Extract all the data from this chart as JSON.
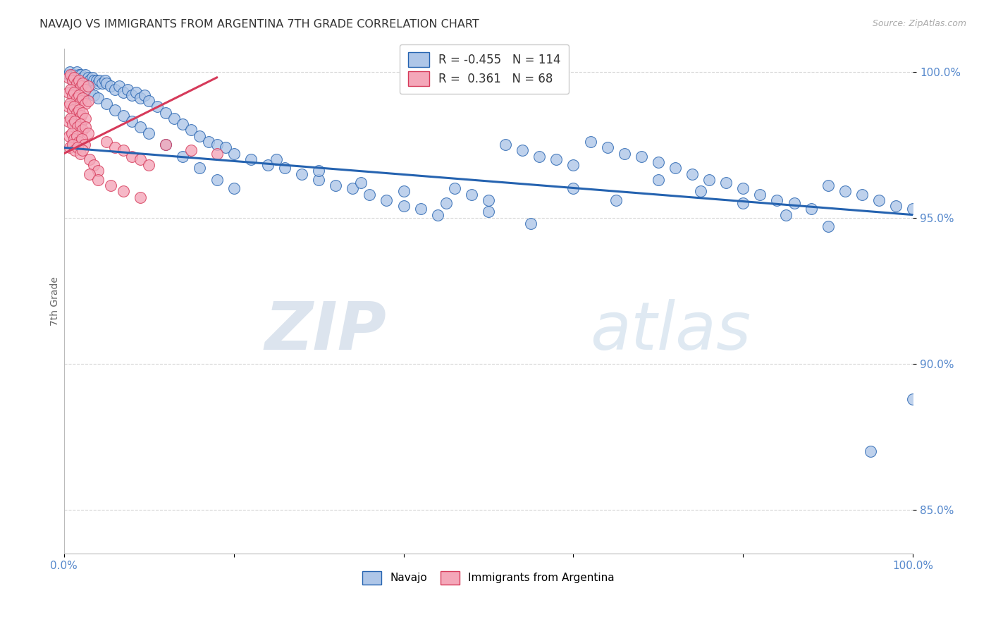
{
  "title": "NAVAJO VS IMMIGRANTS FROM ARGENTINA 7TH GRADE CORRELATION CHART",
  "source_text": "Source: ZipAtlas.com",
  "ylabel": "7th Grade",
  "x_min": 0.0,
  "x_max": 1.0,
  "y_min": 0.835,
  "y_max": 1.008,
  "y_ticks": [
    0.85,
    0.9,
    0.95,
    1.0
  ],
  "y_tick_labels": [
    "85.0%",
    "90.0%",
    "95.0%",
    "100.0%"
  ],
  "navajo_R": -0.455,
  "navajo_N": 114,
  "argentina_R": 0.361,
  "argentina_N": 68,
  "navajo_color": "#aec6e8",
  "argentina_color": "#f4a7b9",
  "navajo_line_color": "#2563b0",
  "argentina_line_color": "#d63a5a",
  "watermark_zip": "ZIP",
  "watermark_atlas": "atlas",
  "background_color": "#ffffff",
  "grid_color": "#cccccc",
  "title_color": "#333333",
  "axis_label_color": "#666666",
  "tick_label_color": "#5588cc",
  "nav_line_x0": 0.0,
  "nav_line_y0": 0.974,
  "nav_line_x1": 1.0,
  "nav_line_y1": 0.951,
  "arg_line_x0": 0.0,
  "arg_line_y0": 0.972,
  "arg_line_x1": 0.18,
  "arg_line_y1": 0.998,
  "navajo_x": [
    0.005,
    0.007,
    0.01,
    0.012,
    0.015,
    0.018,
    0.02,
    0.022,
    0.025,
    0.028,
    0.03,
    0.033,
    0.035,
    0.038,
    0.04,
    0.042,
    0.045,
    0.048,
    0.05,
    0.055,
    0.06,
    0.065,
    0.07,
    0.075,
    0.08,
    0.085,
    0.09,
    0.095,
    0.1,
    0.11,
    0.12,
    0.13,
    0.14,
    0.15,
    0.16,
    0.17,
    0.18,
    0.19,
    0.2,
    0.22,
    0.24,
    0.26,
    0.28,
    0.3,
    0.32,
    0.34,
    0.36,
    0.38,
    0.4,
    0.42,
    0.44,
    0.46,
    0.48,
    0.5,
    0.52,
    0.54,
    0.56,
    0.58,
    0.6,
    0.62,
    0.64,
    0.66,
    0.68,
    0.7,
    0.72,
    0.74,
    0.76,
    0.78,
    0.8,
    0.82,
    0.84,
    0.86,
    0.88,
    0.9,
    0.92,
    0.94,
    0.96,
    0.98,
    1.0,
    0.01,
    0.015,
    0.02,
    0.025,
    0.03,
    0.035,
    0.04,
    0.05,
    0.06,
    0.07,
    0.08,
    0.09,
    0.1,
    0.12,
    0.14,
    0.16,
    0.18,
    0.2,
    0.25,
    0.3,
    0.35,
    0.4,
    0.45,
    0.5,
    0.55,
    0.6,
    0.65,
    0.7,
    0.75,
    0.8,
    0.85,
    0.9,
    0.95,
    1.0
  ],
  "navajo_y": [
    0.999,
    1.0,
    0.999,
    0.999,
    1.0,
    0.999,
    0.999,
    0.998,
    0.999,
    0.998,
    0.997,
    0.998,
    0.997,
    0.997,
    0.996,
    0.997,
    0.996,
    0.997,
    0.996,
    0.995,
    0.994,
    0.995,
    0.993,
    0.994,
    0.992,
    0.993,
    0.991,
    0.992,
    0.99,
    0.988,
    0.986,
    0.984,
    0.982,
    0.98,
    0.978,
    0.976,
    0.975,
    0.974,
    0.972,
    0.97,
    0.968,
    0.967,
    0.965,
    0.963,
    0.961,
    0.96,
    0.958,
    0.956,
    0.954,
    0.953,
    0.951,
    0.96,
    0.958,
    0.956,
    0.975,
    0.973,
    0.971,
    0.97,
    0.968,
    0.976,
    0.974,
    0.972,
    0.971,
    0.969,
    0.967,
    0.965,
    0.963,
    0.962,
    0.96,
    0.958,
    0.956,
    0.955,
    0.953,
    0.961,
    0.959,
    0.958,
    0.956,
    0.954,
    0.953,
    0.997,
    0.996,
    0.995,
    0.994,
    0.993,
    0.992,
    0.991,
    0.989,
    0.987,
    0.985,
    0.983,
    0.981,
    0.979,
    0.975,
    0.971,
    0.967,
    0.963,
    0.96,
    0.97,
    0.966,
    0.962,
    0.959,
    0.955,
    0.952,
    0.948,
    0.96,
    0.956,
    0.963,
    0.959,
    0.955,
    0.951,
    0.947,
    0.87,
    0.888
  ],
  "argentina_x": [
    0.005,
    0.008,
    0.01,
    0.012,
    0.015,
    0.018,
    0.02,
    0.022,
    0.025,
    0.028,
    0.005,
    0.008,
    0.01,
    0.012,
    0.015,
    0.018,
    0.02,
    0.022,
    0.025,
    0.028,
    0.005,
    0.007,
    0.01,
    0.012,
    0.015,
    0.018,
    0.02,
    0.022,
    0.025,
    0.005,
    0.008,
    0.01,
    0.013,
    0.016,
    0.019,
    0.022,
    0.025,
    0.028,
    0.006,
    0.009,
    0.012,
    0.015,
    0.018,
    0.021,
    0.024,
    0.007,
    0.01,
    0.013,
    0.016,
    0.019,
    0.022,
    0.03,
    0.035,
    0.04,
    0.05,
    0.06,
    0.07,
    0.08,
    0.09,
    0.1,
    0.12,
    0.15,
    0.18,
    0.03,
    0.04,
    0.055,
    0.07,
    0.09
  ],
  "argentina_y": [
    0.998,
    0.999,
    0.997,
    0.998,
    0.996,
    0.997,
    0.995,
    0.996,
    0.994,
    0.995,
    0.993,
    0.994,
    0.992,
    0.993,
    0.991,
    0.992,
    0.99,
    0.991,
    0.989,
    0.99,
    0.988,
    0.989,
    0.987,
    0.988,
    0.986,
    0.987,
    0.985,
    0.986,
    0.984,
    0.983,
    0.984,
    0.982,
    0.983,
    0.981,
    0.982,
    0.98,
    0.981,
    0.979,
    0.978,
    0.979,
    0.977,
    0.978,
    0.976,
    0.977,
    0.975,
    0.974,
    0.975,
    0.973,
    0.974,
    0.972,
    0.973,
    0.97,
    0.968,
    0.966,
    0.976,
    0.974,
    0.973,
    0.971,
    0.97,
    0.968,
    0.975,
    0.973,
    0.972,
    0.965,
    0.963,
    0.961,
    0.959,
    0.957
  ]
}
